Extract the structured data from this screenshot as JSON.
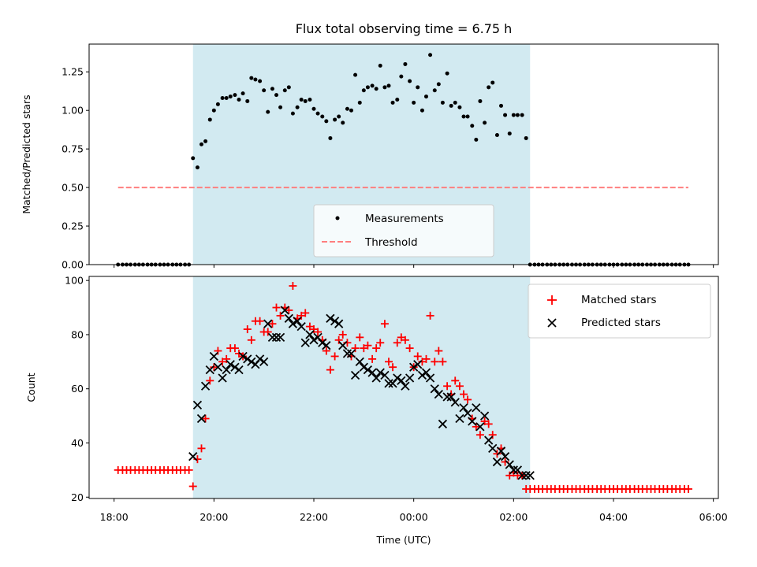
{
  "colors": {
    "shade": "#add8e6",
    "matched": "#ff0000",
    "predicted": "#000000",
    "measurements": "#000000",
    "threshold": "#ff7f7f"
  },
  "chart_data": [
    {
      "type": "scatter",
      "title": "Flux total observing time = 6.75 h",
      "xlabel": "",
      "ylabel": "Matched/Predicted stars",
      "xlim": [
        -0.5,
        12.1
      ],
      "ylim": [
        0.0,
        1.43
      ],
      "yticks": [
        "0.00",
        "0.25",
        "0.50",
        "0.75",
        "1.00",
        "1.25"
      ],
      "grid": false,
      "legend": "bottom-center",
      "shaded_region": [
        1.58,
        8.33
      ],
      "series": [
        {
          "name": "Measurements",
          "style": "dot",
          "x": [
            0.08,
            0.17,
            0.25,
            0.33,
            0.42,
            0.5,
            0.58,
            0.67,
            0.75,
            0.83,
            0.92,
            1.0,
            1.08,
            1.17,
            1.25,
            1.33,
            1.42,
            1.5,
            1.58,
            1.67,
            1.75,
            1.83,
            1.92,
            2.0,
            2.08,
            2.17,
            2.25,
            2.33,
            2.42,
            2.5,
            2.58,
            2.67,
            2.75,
            2.83,
            2.92,
            3.0,
            3.08,
            3.17,
            3.25,
            3.33,
            3.42,
            3.5,
            3.58,
            3.67,
            3.75,
            3.83,
            3.92,
            4.0,
            4.08,
            4.17,
            4.25,
            4.33,
            4.42,
            4.5,
            4.58,
            4.67,
            4.75,
            4.83,
            4.92,
            5.0,
            5.08,
            5.17,
            5.25,
            5.33,
            5.42,
            5.5,
            5.58,
            5.67,
            5.75,
            5.83,
            5.92,
            6.0,
            6.08,
            6.17,
            6.25,
            6.33,
            6.42,
            6.5,
            6.58,
            6.67,
            6.75,
            6.83,
            6.92,
            7.0,
            7.08,
            7.17,
            7.25,
            7.33,
            7.42,
            7.5,
            7.58,
            7.67,
            7.75,
            7.83,
            7.92,
            8.0,
            8.08,
            8.17,
            8.25,
            8.33,
            8.42,
            8.5,
            8.58,
            8.67,
            8.75,
            8.83,
            8.92,
            9.0,
            9.08,
            9.17,
            9.25,
            9.33,
            9.42,
            9.5,
            9.58,
            9.67,
            9.75,
            9.83,
            9.92,
            10.0,
            10.08,
            10.17,
            10.25,
            10.33,
            10.42,
            10.5,
            10.58,
            10.67,
            10.75,
            10.83,
            10.92,
            11.0,
            11.08,
            11.17,
            11.25,
            11.33,
            11.42,
            11.5
          ],
          "y": [
            0,
            0,
            0,
            0,
            0,
            0,
            0,
            0,
            0,
            0,
            0,
            0,
            0,
            0,
            0,
            0,
            0,
            0,
            0.69,
            0.63,
            0.78,
            0.8,
            0.94,
            1.0,
            1.04,
            1.08,
            1.08,
            1.09,
            1.1,
            1.07,
            1.11,
            1.06,
            1.21,
            1.2,
            1.19,
            1.13,
            0.99,
            1.14,
            1.1,
            1.02,
            1.13,
            1.15,
            0.98,
            1.02,
            1.07,
            1.06,
            1.07,
            1.01,
            0.98,
            0.96,
            0.93,
            0.82,
            0.94,
            0.96,
            0.92,
            1.01,
            1.0,
            1.23,
            1.05,
            1.13,
            1.15,
            1.16,
            1.14,
            1.29,
            1.15,
            1.16,
            1.05,
            1.07,
            1.22,
            1.3,
            1.19,
            1.05,
            1.15,
            1.0,
            1.09,
            1.36,
            1.13,
            1.17,
            1.05,
            1.24,
            1.03,
            1.05,
            1.02,
            0.96,
            0.96,
            0.9,
            0.81,
            1.06,
            0.92,
            1.15,
            1.18,
            0.84,
            1.03,
            0.97,
            0.85,
            0.97,
            0.97,
            0.97,
            0.82,
            0,
            0,
            0,
            0,
            0,
            0,
            0,
            0,
            0,
            0,
            0,
            0,
            0,
            0,
            0,
            0,
            0,
            0,
            0,
            0,
            0,
            0,
            0,
            0,
            0,
            0,
            0,
            0,
            0,
            0,
            0,
            0,
            0,
            0,
            0,
            0,
            0,
            0,
            0
          ]
        },
        {
          "name": "Threshold",
          "style": "dashed-line",
          "x": [
            0.08,
            11.5
          ],
          "y": [
            0.5,
            0.5
          ]
        }
      ]
    },
    {
      "type": "scatter",
      "title": "",
      "xlabel": "Time (UTC)",
      "ylabel": "Count",
      "xlim": [
        -0.5,
        12.1
      ],
      "ylim": [
        19.5,
        101.5
      ],
      "yticks": [
        "20",
        "40",
        "60",
        "80",
        "100"
      ],
      "xticks": [
        "18:00",
        "20:00",
        "22:00",
        "00:00",
        "02:00",
        "04:00",
        "06:00"
      ],
      "grid": false,
      "legend": "top-right",
      "shaded_region": [
        1.58,
        8.33
      ],
      "series": [
        {
          "name": "Matched stars",
          "style": "plus",
          "x": [
            0.08,
            0.17,
            0.25,
            0.33,
            0.42,
            0.5,
            0.58,
            0.67,
            0.75,
            0.83,
            0.92,
            1.0,
            1.08,
            1.17,
            1.25,
            1.33,
            1.42,
            1.5,
            1.58,
            1.67,
            1.75,
            1.83,
            1.92,
            2.0,
            2.08,
            2.17,
            2.25,
            2.33,
            2.42,
            2.5,
            2.58,
            2.67,
            2.75,
            2.83,
            2.92,
            3.0,
            3.08,
            3.17,
            3.25,
            3.33,
            3.42,
            3.5,
            3.58,
            3.67,
            3.75,
            3.83,
            3.92,
            4.0,
            4.08,
            4.17,
            4.25,
            4.33,
            4.42,
            4.5,
            4.58,
            4.67,
            4.75,
            4.83,
            4.92,
            5.0,
            5.08,
            5.17,
            5.25,
            5.33,
            5.42,
            5.5,
            5.58,
            5.67,
            5.75,
            5.83,
            5.92,
            6.0,
            6.08,
            6.17,
            6.25,
            6.33,
            6.42,
            6.5,
            6.58,
            6.67,
            6.75,
            6.83,
            6.92,
            7.0,
            7.08,
            7.17,
            7.25,
            7.33,
            7.42,
            7.5,
            7.58,
            7.67,
            7.75,
            7.83,
            7.92,
            8.0,
            8.08,
            8.17,
            8.25,
            8.33,
            8.42,
            8.5,
            8.58,
            8.67,
            8.75,
            8.83,
            8.92,
            9.0,
            9.08,
            9.17,
            9.25,
            9.33,
            9.42,
            9.5,
            9.58,
            9.67,
            9.75,
            9.83,
            9.92,
            10.0,
            10.08,
            10.17,
            10.25,
            10.33,
            10.42,
            10.5,
            10.58,
            10.67,
            10.75,
            10.83,
            10.92,
            11.0,
            11.08,
            11.17,
            11.25,
            11.33,
            11.42,
            11.5
          ],
          "y": [
            30,
            30,
            30,
            30,
            30,
            30,
            30,
            30,
            30,
            30,
            30,
            30,
            30,
            30,
            30,
            30,
            30,
            30,
            24,
            34,
            38,
            49,
            63,
            68,
            74,
            70,
            71,
            75,
            75,
            73,
            72,
            82,
            78,
            85,
            85,
            81,
            81,
            84,
            90,
            87,
            90,
            89,
            98,
            86,
            87,
            88,
            83,
            82,
            81,
            78,
            74,
            67,
            72,
            78,
            80,
            77,
            72,
            75,
            79,
            75,
            76,
            71,
            75,
            77,
            84,
            70,
            68,
            77,
            79,
            78,
            75,
            68,
            72,
            70,
            71,
            87,
            70,
            74,
            70,
            61,
            58,
            63,
            61,
            58,
            56,
            49,
            46,
            43,
            48,
            47,
            43,
            36,
            38,
            33,
            28,
            29,
            28,
            28,
            23,
            23,
            23,
            23,
            23,
            23,
            23,
            23,
            23,
            23,
            23,
            23,
            23,
            23,
            23,
            23,
            23,
            23,
            23,
            23,
            23,
            23,
            23,
            23,
            23,
            23,
            23,
            23,
            23,
            23,
            23,
            23,
            23,
            23,
            23,
            23,
            23,
            23,
            23,
            23
          ]
        },
        {
          "name": "Predicted stars",
          "style": "x",
          "x": [
            1.58,
            1.67,
            1.75,
            1.83,
            1.92,
            2.0,
            2.08,
            2.17,
            2.25,
            2.33,
            2.42,
            2.5,
            2.58,
            2.67,
            2.75,
            2.83,
            2.92,
            3.0,
            3.08,
            3.17,
            3.25,
            3.33,
            3.42,
            3.5,
            3.58,
            3.67,
            3.75,
            3.83,
            3.92,
            4.0,
            4.08,
            4.17,
            4.25,
            4.33,
            4.42,
            4.5,
            4.58,
            4.67,
            4.75,
            4.83,
            4.92,
            5.0,
            5.08,
            5.17,
            5.25,
            5.33,
            5.42,
            5.5,
            5.58,
            5.67,
            5.75,
            5.83,
            5.92,
            6.0,
            6.08,
            6.17,
            6.25,
            6.33,
            6.42,
            6.5,
            6.58,
            6.67,
            6.75,
            6.83,
            6.92,
            7.0,
            7.08,
            7.17,
            7.25,
            7.33,
            7.42,
            7.5,
            7.58,
            7.67,
            7.75,
            7.83,
            7.92,
            8.0,
            8.08,
            8.17,
            8.25,
            8.33
          ],
          "y": [
            35,
            54,
            49,
            61,
            67,
            72,
            68,
            64,
            67,
            69,
            68,
            67,
            72,
            71,
            70,
            69,
            71,
            70,
            84,
            79,
            79,
            79,
            89,
            86,
            84,
            85,
            83,
            77,
            80,
            78,
            79,
            77,
            76,
            86,
            85,
            84,
            76,
            73,
            73,
            65,
            70,
            68,
            67,
            66,
            64,
            66,
            65,
            62,
            62,
            64,
            63,
            61,
            64,
            68,
            69,
            65,
            66,
            64,
            60,
            58,
            47,
            57,
            57,
            55,
            49,
            53,
            51,
            48,
            53,
            46,
            50,
            41,
            38,
            33,
            37,
            35,
            32,
            30,
            30,
            28,
            28,
            28
          ]
        }
      ]
    }
  ]
}
